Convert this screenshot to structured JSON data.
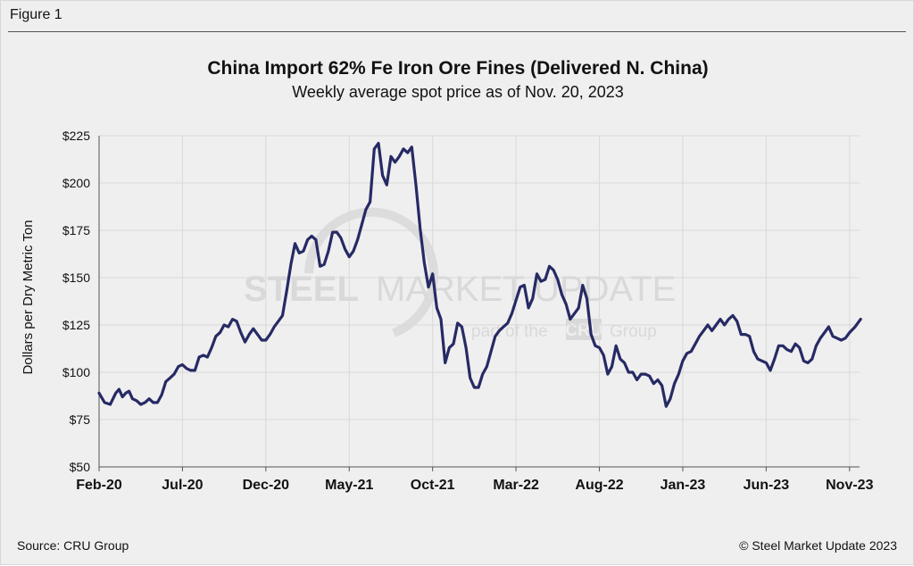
{
  "figure_label": "Figure 1",
  "footer": {
    "source": "Source: CRU Group",
    "copyright": "© Steel Market Update 2023"
  },
  "watermark": {
    "line1_bold": "STEEL",
    "line1_light": "MARKET UPDATE",
    "line2_pre": "part of the",
    "line2_logo": "CRU",
    "line2_post": "Group"
  },
  "colors": {
    "line": "#262a64",
    "grid": "#d9d9d9",
    "background": "#efefef"
  },
  "chart_data": {
    "type": "line",
    "title": "China Import 62% Fe Iron Ore Fines (Delivered N. China)",
    "subtitle": "Weekly average spot price as of Nov. 20, 2023",
    "xlabel": "",
    "ylabel": "Dollars per Dry Metric Ton",
    "ylim": [
      50,
      225
    ],
    "yticks": [
      50,
      75,
      100,
      125,
      150,
      175,
      200,
      225
    ],
    "ytick_labels": [
      "$50",
      "$75",
      "$100",
      "$125",
      "$150",
      "$175",
      "$200",
      "$225"
    ],
    "xlim": [
      "2020-02",
      "2023-11"
    ],
    "xtick_labels": [
      "Feb-20",
      "Jul-20",
      "Dec-20",
      "May-21",
      "Oct-21",
      "Mar-22",
      "Aug-22",
      "Jan-23",
      "Jun-23",
      "Nov-23"
    ],
    "grid": true,
    "legend": "none",
    "series": [
      {
        "x": [
          "2020-02",
          "2020-02",
          "2020-02",
          "2020-03",
          "2020-03",
          "2020-03",
          "2020-03",
          "2020-03",
          "2020-04",
          "2020-04",
          "2020-04",
          "2020-04",
          "2020-05",
          "2020-05",
          "2020-05",
          "2020-05",
          "2020-06",
          "2020-06",
          "2020-06",
          "2020-06",
          "2020-07",
          "2020-07",
          "2020-07",
          "2020-07",
          "2020-08",
          "2020-08",
          "2020-08",
          "2020-08",
          "2020-09",
          "2020-09",
          "2020-09",
          "2020-09",
          "2020-10",
          "2020-10",
          "2020-10",
          "2020-10",
          "2020-11",
          "2020-11",
          "2020-11",
          "2020-11",
          "2020-12",
          "2020-12",
          "2020-12",
          "2020-12",
          "2021-01",
          "2021-01",
          "2021-01",
          "2021-01",
          "2021-02",
          "2021-02",
          "2021-02",
          "2021-02",
          "2021-03",
          "2021-03",
          "2021-03",
          "2021-03",
          "2021-04",
          "2021-04",
          "2021-04",
          "2021-04",
          "2021-05",
          "2021-05",
          "2021-05",
          "2021-05",
          "2021-06",
          "2021-06",
          "2021-06",
          "2021-06",
          "2021-07",
          "2021-07",
          "2021-07",
          "2021-07",
          "2021-08",
          "2021-08",
          "2021-08",
          "2021-08",
          "2021-09",
          "2021-09",
          "2021-09",
          "2021-09",
          "2021-10",
          "2021-10",
          "2021-10",
          "2021-10",
          "2021-11",
          "2021-11",
          "2021-11",
          "2021-11",
          "2021-12",
          "2021-12",
          "2021-12",
          "2021-12",
          "2022-01",
          "2022-01",
          "2022-01",
          "2022-01",
          "2022-02",
          "2022-02",
          "2022-02",
          "2022-02",
          "2022-03",
          "2022-03",
          "2022-03",
          "2022-03",
          "2022-04",
          "2022-04",
          "2022-04",
          "2022-04",
          "2022-05",
          "2022-05",
          "2022-05",
          "2022-05",
          "2022-06",
          "2022-06",
          "2022-06",
          "2022-06",
          "2022-07",
          "2022-07",
          "2022-07",
          "2022-07",
          "2022-08",
          "2022-08",
          "2022-08",
          "2022-08",
          "2022-09",
          "2022-09",
          "2022-09",
          "2022-09",
          "2022-10",
          "2022-10",
          "2022-10",
          "2022-10",
          "2022-11",
          "2022-11",
          "2022-11",
          "2022-11",
          "2022-12",
          "2022-12",
          "2022-12",
          "2022-12",
          "2023-01",
          "2023-01",
          "2023-01",
          "2023-01",
          "2023-02",
          "2023-02",
          "2023-02",
          "2023-02",
          "2023-03",
          "2023-03",
          "2023-03",
          "2023-03",
          "2023-04",
          "2023-04",
          "2023-04",
          "2023-04",
          "2023-05",
          "2023-05",
          "2023-05",
          "2023-05",
          "2023-06",
          "2023-06",
          "2023-06",
          "2023-06",
          "2023-07",
          "2023-07",
          "2023-07",
          "2023-07",
          "2023-08",
          "2023-08",
          "2023-08",
          "2023-08",
          "2023-09",
          "2023-09",
          "2023-09",
          "2023-09",
          "2023-10",
          "2023-10",
          "2023-10",
          "2023-10",
          "2023-11",
          "2023-11",
          "2023-11"
        ],
        "values": [
          89,
          84,
          83,
          89,
          91,
          87,
          89,
          90,
          86,
          85,
          83,
          84,
          86,
          84,
          84,
          88,
          95,
          97,
          99,
          103,
          104,
          102,
          101,
          101,
          108,
          109,
          108,
          113,
          119,
          121,
          125,
          124,
          128,
          127,
          121,
          116,
          120,
          123,
          120,
          117,
          117,
          120,
          124,
          127,
          130,
          143,
          157,
          168,
          163,
          164,
          170,
          172,
          170,
          156,
          157,
          164,
          174,
          174,
          171,
          165,
          161,
          164,
          170,
          178,
          186,
          190,
          218,
          221,
          204,
          199,
          214,
          211,
          214,
          218,
          216,
          219,
          199,
          176,
          158,
          145,
          152,
          134,
          128,
          105,
          113,
          115,
          126,
          124,
          113,
          97,
          92,
          92,
          99,
          103,
          111,
          119,
          122,
          124,
          126,
          131,
          138,
          145,
          146,
          134,
          139,
          152,
          148,
          149,
          156,
          154,
          149,
          141,
          136,
          128,
          131,
          134,
          146,
          139,
          120,
          114,
          113,
          109,
          99,
          103,
          114,
          107,
          105,
          100,
          100,
          96,
          99,
          99,
          98,
          94,
          96,
          93,
          82,
          86,
          94,
          99,
          106,
          110,
          111,
          115,
          119,
          122,
          125,
          122,
          125,
          128,
          125,
          128,
          130,
          127,
          120,
          120,
          119,
          111,
          107,
          106,
          105,
          101,
          107,
          114,
          114,
          112,
          111,
          115,
          113,
          106,
          105,
          107,
          114,
          118,
          121,
          124,
          119,
          118,
          117,
          118,
          121,
          124,
          128
        ]
      }
    ]
  }
}
